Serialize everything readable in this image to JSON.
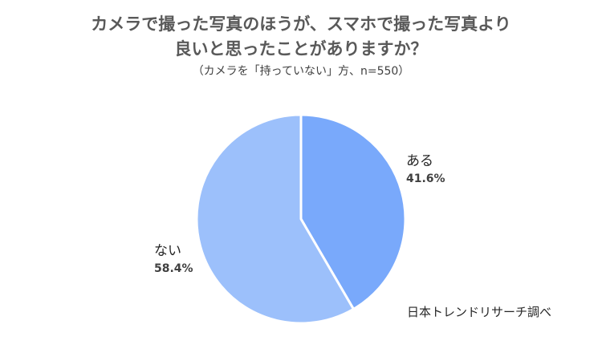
{
  "chart_data": {
    "type": "pie",
    "title_lines": [
      "カメラで撮った写真のほうが、スマホで撮った写真より",
      "良いと思ったことがありますか？"
    ],
    "subtitle": "（カメラを「持っていない」方、n=550）",
    "slices": [
      {
        "name": "ある",
        "value": 41.6,
        "label": "41.6%",
        "color": "#79a9fb"
      },
      {
        "name": "ない",
        "value": 58.4,
        "label": "58.4%",
        "color": "#9cc0fb"
      }
    ],
    "source": "日本トレンドリサーチ調べ",
    "legend": "none"
  }
}
